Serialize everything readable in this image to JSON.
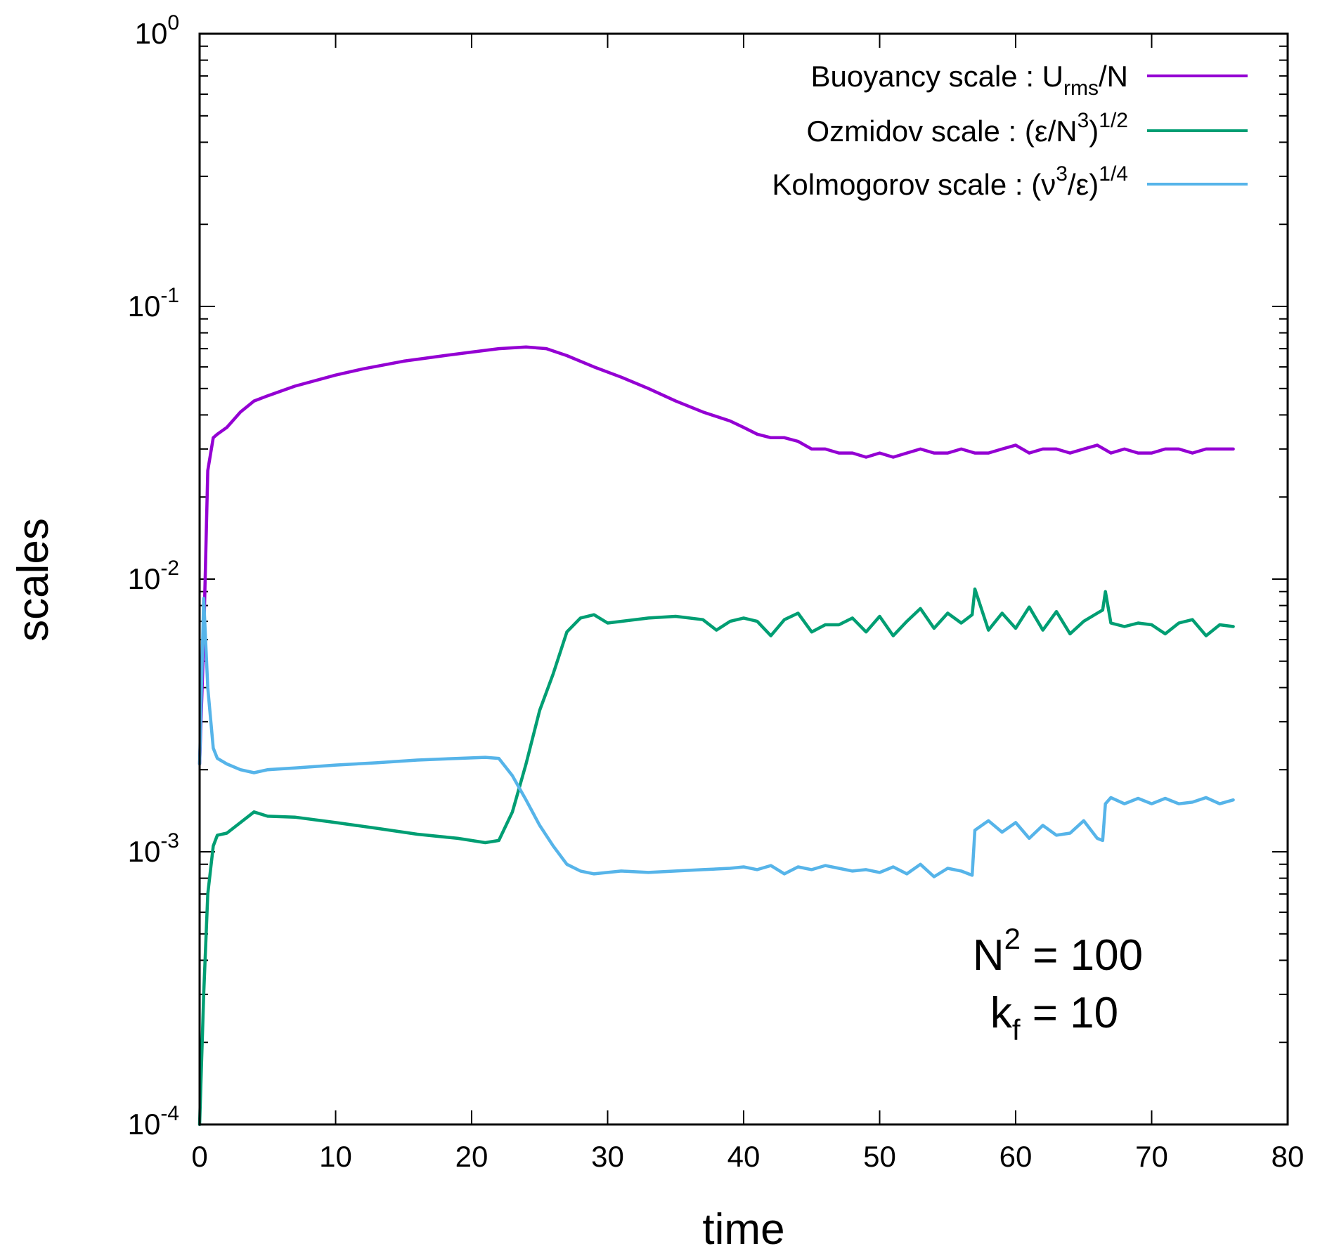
{
  "chart_data": {
    "type": "line",
    "xlabel": "time",
    "ylabel": "scales",
    "xscale": "linear",
    "yscale": "log",
    "xlim": [
      0,
      80
    ],
    "ylim": [
      0.0001,
      1
    ],
    "x_ticks": [
      "0",
      "10",
      "20",
      "30",
      "40",
      "50",
      "60",
      "70",
      "80"
    ],
    "x_tick_values": [
      0,
      10,
      20,
      30,
      40,
      50,
      60,
      70,
      80
    ],
    "y_ticks": [
      {
        "base": "10",
        "exp": "0",
        "value": 1
      },
      {
        "base": "10",
        "exp": "-1",
        "value": 0.1
      },
      {
        "base": "10",
        "exp": "-2",
        "value": 0.01
      },
      {
        "base": "10",
        "exp": "-3",
        "value": 0.001
      },
      {
        "base": "10",
        "exp": "-4",
        "value": 0.0001
      }
    ],
    "legend_position": "top-right",
    "annotation": {
      "line1": {
        "base": "N",
        "sup": "2",
        "rest": " = 100"
      },
      "line2": {
        "base": "k",
        "sub": "f",
        "rest": " = 10"
      }
    },
    "series": [
      {
        "name": "Buoyancy scale",
        "legend": {
          "main": "Buoyancy scale : U",
          "sub": "rms",
          "tail": "/N"
        },
        "color": "#9400d3",
        "x": [
          0,
          0.3,
          0.6,
          1.0,
          1.3,
          2.0,
          3.0,
          4.0,
          5.0,
          7.0,
          10.0,
          12.0,
          15.0,
          18.0,
          20.0,
          22.0,
          24.0,
          25.5,
          27.0,
          29.0,
          31.0,
          33.0,
          35.0,
          37.0,
          39.0,
          40.0,
          41.0,
          42.0,
          43.0,
          44.0,
          45.0,
          46.0,
          47.0,
          48.0,
          49.0,
          50.0,
          51.0,
          52.0,
          53.0,
          54.0,
          55.0,
          56.0,
          57.0,
          58.0,
          59.0,
          60.0,
          61.0,
          62.0,
          63.0,
          64.0,
          65.0,
          66.0,
          67.0,
          68.0,
          69.0,
          70.0,
          71.0,
          72.0,
          73.0,
          74.0,
          75.0,
          76.0
        ],
        "values": [
          0.0021,
          0.006,
          0.025,
          0.033,
          0.034,
          0.036,
          0.041,
          0.045,
          0.047,
          0.051,
          0.056,
          0.059,
          0.063,
          0.066,
          0.068,
          0.07,
          0.071,
          0.07,
          0.066,
          0.06,
          0.055,
          0.05,
          0.045,
          0.041,
          0.038,
          0.036,
          0.034,
          0.033,
          0.033,
          0.032,
          0.03,
          0.03,
          0.029,
          0.029,
          0.028,
          0.029,
          0.028,
          0.029,
          0.03,
          0.029,
          0.029,
          0.03,
          0.029,
          0.029,
          0.03,
          0.031,
          0.029,
          0.03,
          0.03,
          0.029,
          0.03,
          0.031,
          0.029,
          0.03,
          0.029,
          0.029,
          0.03,
          0.03,
          0.029,
          0.03,
          0.03,
          0.03
        ]
      },
      {
        "name": "Ozmidov scale",
        "legend": {
          "main": "Ozmidov scale : (ε/N",
          "sup1": "3",
          "tail": ")",
          "sup2": "1/2"
        },
        "color": "#009e73",
        "x": [
          0,
          0.3,
          0.6,
          1.0,
          1.3,
          2.0,
          3.0,
          4.0,
          5.0,
          7.0,
          10.0,
          13.0,
          16.0,
          19.0,
          21.0,
          22.0,
          23.0,
          24.0,
          25.0,
          26.0,
          27.0,
          28.0,
          29.0,
          30.0,
          31.0,
          33.0,
          35.0,
          37.0,
          38.0,
          39.0,
          40.0,
          41.0,
          42.0,
          43.0,
          44.0,
          45.0,
          46.0,
          47.0,
          48.0,
          49.0,
          50.0,
          51.0,
          52.0,
          53.0,
          54.0,
          55.0,
          56.0,
          56.8,
          57.0,
          58.0,
          59.0,
          60.0,
          61.0,
          62.0,
          63.0,
          64.0,
          65.0,
          66.0,
          66.4,
          66.6,
          67.0,
          68.0,
          69.0,
          70.0,
          71.0,
          72.0,
          73.0,
          74.0,
          75.0,
          76.0
        ],
        "values": [
          0.0001,
          0.0003,
          0.0007,
          0.00105,
          0.00115,
          0.00117,
          0.00128,
          0.0014,
          0.00135,
          0.00134,
          0.00128,
          0.00122,
          0.00116,
          0.00112,
          0.00108,
          0.0011,
          0.0014,
          0.0021,
          0.0033,
          0.0045,
          0.0064,
          0.0072,
          0.0074,
          0.0069,
          0.007,
          0.0072,
          0.0073,
          0.0071,
          0.0065,
          0.007,
          0.0072,
          0.007,
          0.0062,
          0.0071,
          0.0075,
          0.0064,
          0.0068,
          0.0068,
          0.0072,
          0.0064,
          0.0073,
          0.0062,
          0.007,
          0.0078,
          0.0066,
          0.0075,
          0.0069,
          0.0074,
          0.0092,
          0.0065,
          0.0075,
          0.0066,
          0.0079,
          0.0065,
          0.0076,
          0.0063,
          0.007,
          0.0075,
          0.0077,
          0.009,
          0.0069,
          0.0067,
          0.0069,
          0.0068,
          0.0063,
          0.0069,
          0.0071,
          0.0062,
          0.0068,
          0.0067
        ]
      },
      {
        "name": "Kolmogorov scale",
        "legend": {
          "main": "Kolmogorov scale : (ν",
          "sup1": "3",
          "tail": "/ε)",
          "sup2": "1/4"
        },
        "color": "#56b4e9",
        "x": [
          0,
          0.3,
          0.6,
          1.0,
          1.3,
          2.0,
          3.0,
          4.0,
          5.0,
          7.0,
          10.0,
          13.0,
          16.0,
          19.0,
          21.0,
          22.0,
          23.0,
          24.0,
          25.0,
          26.0,
          27.0,
          28.0,
          29.0,
          30.0,
          31.0,
          33.0,
          35.0,
          37.0,
          39.0,
          40.0,
          41.0,
          42.0,
          43.0,
          44.0,
          45.0,
          46.0,
          47.0,
          48.0,
          49.0,
          50.0,
          51.0,
          52.0,
          53.0,
          54.0,
          55.0,
          56.0,
          56.8,
          57.0,
          58.0,
          59.0,
          60.0,
          61.0,
          62.0,
          63.0,
          64.0,
          65.0,
          66.0,
          66.4,
          66.6,
          67.0,
          68.0,
          69.0,
          70.0,
          71.0,
          72.0,
          73.0,
          74.0,
          75.0,
          76.0
        ],
        "values": [
          0.0021,
          0.0085,
          0.004,
          0.0024,
          0.0022,
          0.0021,
          0.002,
          0.00195,
          0.002,
          0.00203,
          0.00208,
          0.00212,
          0.00217,
          0.0022,
          0.00222,
          0.0022,
          0.0019,
          0.00155,
          0.00125,
          0.00105,
          0.0009,
          0.00085,
          0.00083,
          0.00084,
          0.00085,
          0.00084,
          0.00085,
          0.00086,
          0.00087,
          0.00088,
          0.00086,
          0.00089,
          0.00083,
          0.00088,
          0.00086,
          0.00089,
          0.00087,
          0.00085,
          0.00086,
          0.00084,
          0.00088,
          0.00083,
          0.0009,
          0.00081,
          0.00087,
          0.00085,
          0.00082,
          0.0012,
          0.0013,
          0.00118,
          0.00128,
          0.00112,
          0.00125,
          0.00115,
          0.00117,
          0.0013,
          0.00112,
          0.0011,
          0.0015,
          0.00158,
          0.0015,
          0.00157,
          0.0015,
          0.00157,
          0.0015,
          0.00152,
          0.00158,
          0.0015,
          0.00155
        ]
      }
    ]
  }
}
